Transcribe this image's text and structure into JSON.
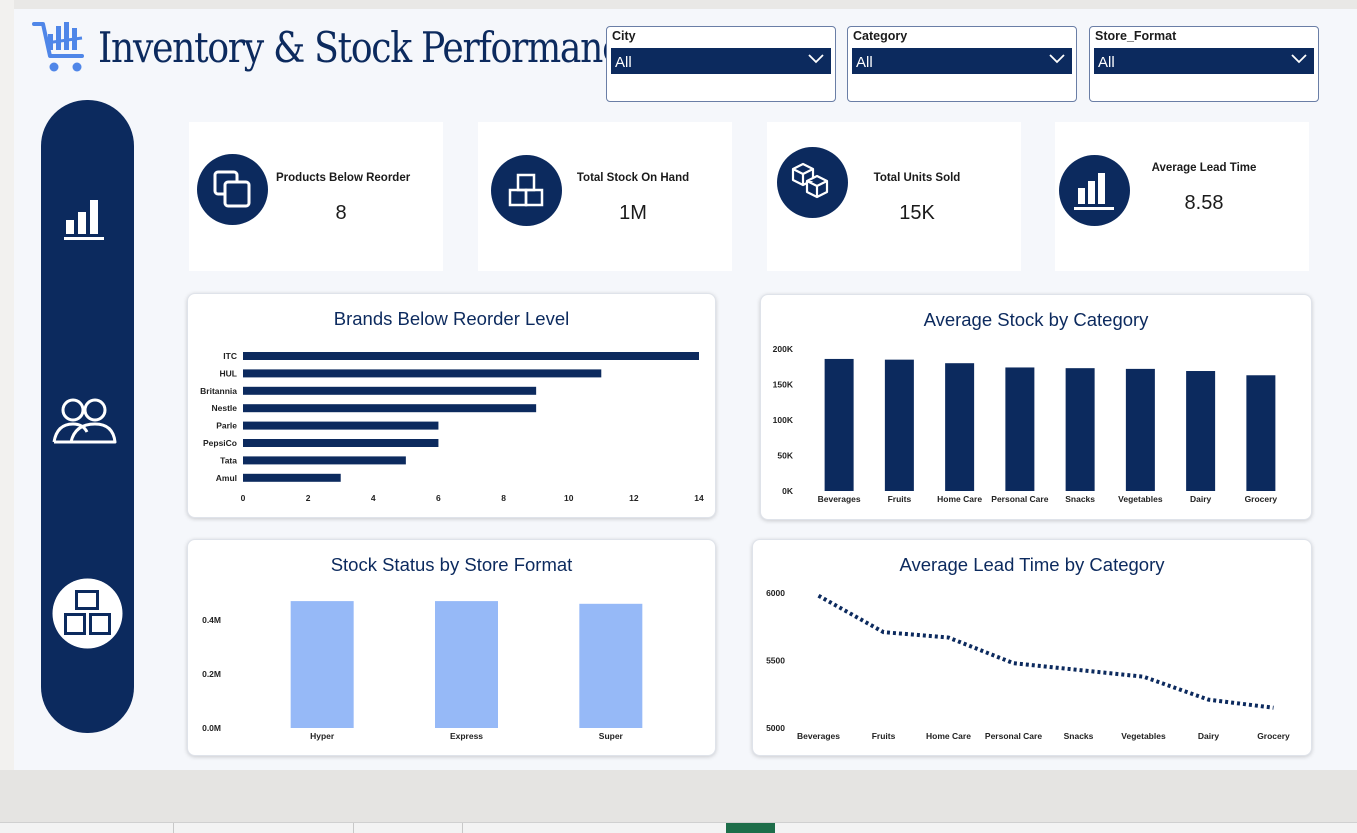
{
  "header": {
    "title": "Inventory & Stock Performance"
  },
  "filters": [
    {
      "label": "City",
      "value": "All"
    },
    {
      "label": "Category",
      "value": "All"
    },
    {
      "label": "Store_Format",
      "value": "All"
    }
  ],
  "nav": {
    "items": [
      "chart-icon",
      "users-icon",
      "boxes-icon"
    ]
  },
  "kpis": [
    {
      "label": "Products Below Reorder",
      "value": "8",
      "icon": "copy-icon"
    },
    {
      "label": "Total Stock On Hand",
      "value": "1M",
      "icon": "boxes-icon"
    },
    {
      "label": "Total Units Sold",
      "value": "15K",
      "icon": "cubes-icon"
    },
    {
      "label": "Average Lead Time",
      "value": "8.58",
      "icon": "bar-chart-icon"
    }
  ],
  "chart_data": [
    {
      "type": "bar",
      "orientation": "horizontal",
      "title": "Brands Below Reorder Level",
      "categories": [
        "ITC",
        "HUL",
        "Britannia",
        "Nestle",
        "Parle",
        "PepsiCo",
        "Tata",
        "Amul"
      ],
      "values": [
        14,
        11,
        9,
        9,
        6,
        6,
        5,
        3
      ],
      "xlim": [
        0,
        14
      ],
      "xticks": [
        "0",
        "2",
        "4",
        "6",
        "8",
        "10",
        "12",
        "14"
      ],
      "color": "#0c2a5e"
    },
    {
      "type": "bar",
      "title": "Average Stock by Category",
      "categories": [
        "Beverages",
        "Fruits",
        "Home Care",
        "Personal Care",
        "Snacks",
        "Vegetables",
        "Dairy",
        "Grocery"
      ],
      "values": [
        186000,
        185000,
        180000,
        174000,
        173000,
        172000,
        169000,
        163000
      ],
      "ylim": [
        0,
        200000
      ],
      "yticks": [
        "0K",
        "50K",
        "100K",
        "150K",
        "200K"
      ],
      "color": "#0c2a5e"
    },
    {
      "type": "bar",
      "title": "Stock Status by Store Format",
      "categories": [
        "Hyper",
        "Express",
        "Super"
      ],
      "values": [
        470000,
        470000,
        460000
      ],
      "ylim": [
        0,
        0.4
      ],
      "yticks": [
        "0.0M",
        "0.2M",
        "0.4M"
      ],
      "color": "#96b9f7"
    },
    {
      "type": "line",
      "title": "Average Lead Time by Category",
      "categories": [
        "Beverages",
        "Fruits",
        "Home Care",
        "Personal Care",
        "Snacks",
        "Vegetables",
        "Dairy",
        "Grocery"
      ],
      "values": [
        5980,
        5710,
        5670,
        5480,
        5430,
        5380,
        5210,
        5150
      ],
      "ylim": [
        5000,
        6000
      ],
      "yticks": [
        "5000",
        "5500",
        "6000"
      ],
      "color": "#0c2a5e",
      "line_style": "dotted"
    }
  ]
}
